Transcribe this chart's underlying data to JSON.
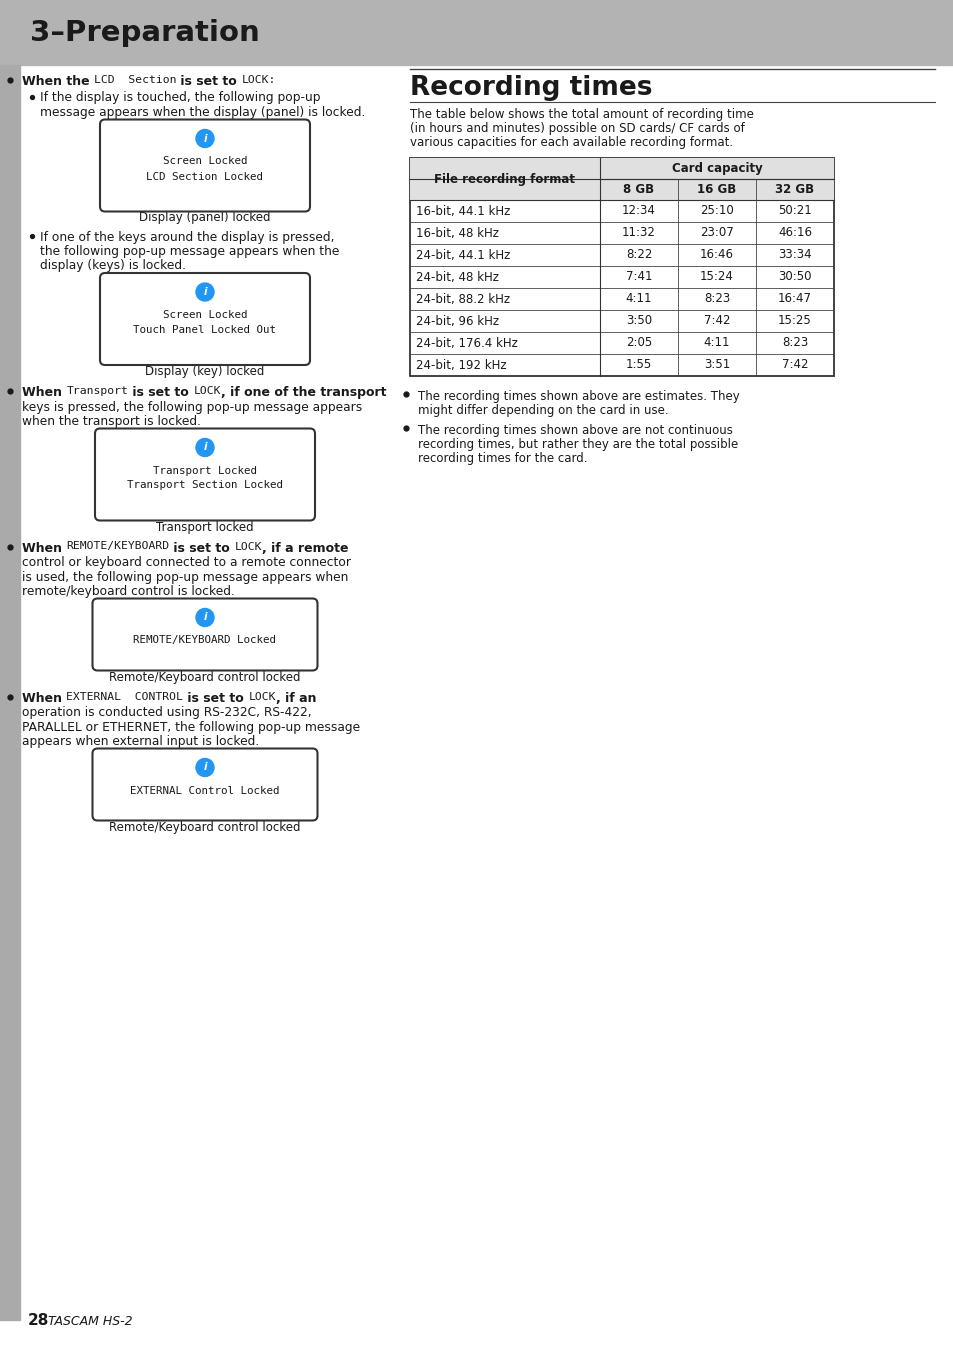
{
  "page_bg": "#ffffff",
  "header_bg": "#b3b3b3",
  "header_text": "3–Preparation",
  "footer_bar_color": "#888888",
  "icon_color": "#2196F3",
  "recording_times_title": "Recording times",
  "recording_times_intro": [
    "The table below shows the total amount of recording time",
    "(in hours and minutes) possible on SD cards/ CF cards of",
    "various capacities for each available recording format."
  ],
  "table_rows": [
    [
      "16-bit, 44.1 kHz",
      "12:34",
      "25:10",
      "50:21"
    ],
    [
      "16-bit, 48 kHz",
      "11:32",
      "23:07",
      "46:16"
    ],
    [
      "24-bit, 44.1 kHz",
      "8:22",
      "16:46",
      "33:34"
    ],
    [
      "24-bit, 48 kHz",
      "7:41",
      "15:24",
      "30:50"
    ],
    [
      "24-bit, 88.2 kHz",
      "4:11",
      "8:23",
      "16:47"
    ],
    [
      "24-bit, 96 kHz",
      "3:50",
      "7:42",
      "15:25"
    ],
    [
      "24-bit, 176.4 kHz",
      "2:05",
      "4:11",
      "8:23"
    ],
    [
      "24-bit, 192 kHz",
      "1:55",
      "3:51",
      "7:42"
    ]
  ],
  "table_note1_lines": [
    "The recording times shown above are estimates. They",
    "might differ depending on the card in use."
  ],
  "table_note2_lines": [
    "The recording times shown above are not continuous",
    "recording times, but rather they are the total possible",
    "recording times for the card."
  ]
}
